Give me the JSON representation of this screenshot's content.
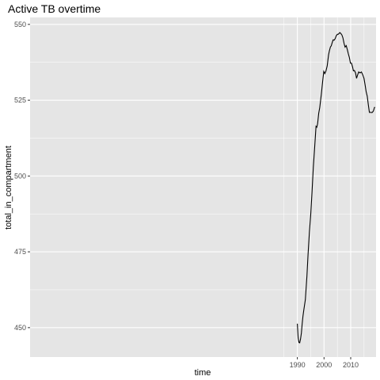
{
  "chart_data": {
    "type": "line",
    "title": "Active TB overtime",
    "xlabel": "time",
    "ylabel": "total_in_compartment",
    "xlim": [
      1889.8,
      2019.5
    ],
    "ylim": [
      440.3,
      552.3
    ],
    "x_ticks": [
      1990,
      2000,
      2010
    ],
    "x_tick_labels": [
      "1990",
      "2000",
      "2010"
    ],
    "y_ticks": [
      450,
      475,
      500,
      525,
      550
    ],
    "y_tick_labels": [
      "450",
      "475",
      "500",
      "525",
      "550"
    ],
    "grid": true,
    "panel_color": "#e5e5e5",
    "grid_color": "#ffffff",
    "line_color": "#000000",
    "series": [
      {
        "x": [
          1990.0,
          1990.3,
          1990.6,
          1990.9,
          1991.2,
          1991.5,
          1991.8,
          1992.1,
          1992.4,
          1993.0,
          1993.6,
          1994.0,
          1994.5,
          1995.0,
          1995.5,
          1996.0,
          1996.5,
          1997.0,
          1997.3,
          1997.6,
          1998.0,
          1998.4,
          1999.0,
          1999.5,
          1999.9,
          2000.3,
          2000.7,
          2001.2,
          2001.7,
          2002.0,
          2002.4,
          2002.7,
          2003.0,
          2003.4,
          2003.8,
          2004.2,
          2004.6,
          2005.0,
          2005.4,
          2005.9,
          2006.3,
          2006.7,
          2007.1,
          2007.5,
          2007.9,
          2008.3,
          2008.7,
          2009.1,
          2009.5,
          2009.9,
          2010.3,
          2010.7,
          2011.0,
          2011.4,
          2011.8,
          2012.2,
          2012.6,
          2013.0,
          2013.5,
          2014.0,
          2014.5,
          2015.0,
          2015.4,
          2015.8,
          2016.2,
          2016.6,
          2017.0,
          2017.5,
          2018.0,
          2018.5,
          2019.0
        ],
        "y": [
          451.3,
          446.6,
          445.1,
          445.0,
          446.2,
          448.2,
          451.3,
          453.8,
          455.7,
          459.2,
          467.0,
          474.0,
          481.4,
          487.3,
          494.5,
          503.0,
          509.6,
          516.4,
          516.1,
          517.3,
          520.7,
          522.6,
          527.0,
          531.3,
          534.5,
          533.8,
          534.6,
          536.3,
          539.9,
          541.2,
          542.6,
          542.9,
          543.8,
          544.9,
          544.8,
          545.3,
          546.3,
          546.7,
          546.8,
          547.3,
          547.0,
          546.5,
          545.5,
          543.7,
          542.5,
          543.0,
          541.8,
          540.3,
          539.1,
          537.2,
          537.2,
          535.9,
          534.7,
          534.8,
          534.0,
          532.2,
          533.4,
          534.3,
          534.0,
          534.3,
          533.4,
          532.2,
          530.0,
          527.8,
          526.3,
          523.6,
          521.0,
          521.0,
          520.9,
          521.4,
          522.8
        ]
      }
    ]
  }
}
